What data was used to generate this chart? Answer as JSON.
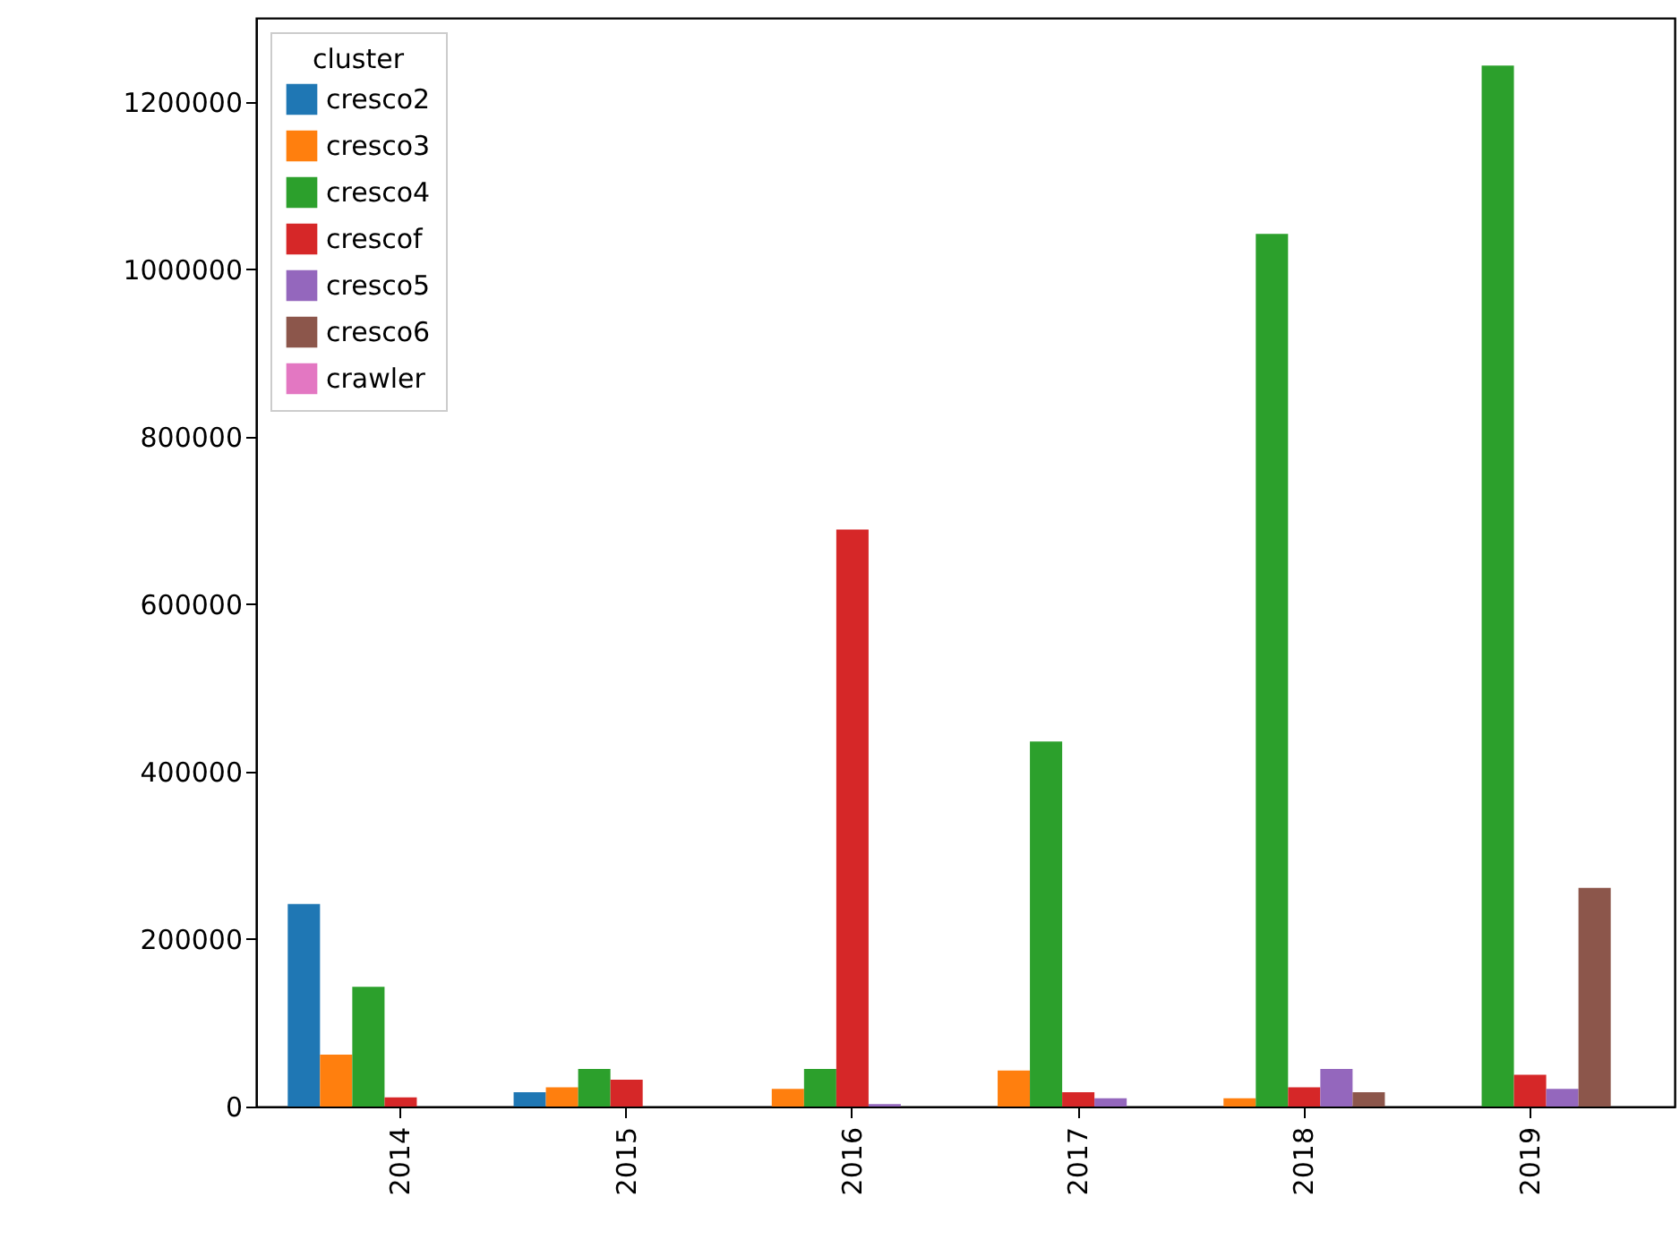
{
  "chart_data": {
    "type": "bar",
    "legend_title": "cluster",
    "legend": "top left",
    "grid": false,
    "categories": [
      "2014",
      "2015",
      "2016",
      "2017",
      "2018",
      "2019"
    ],
    "ylim": [
      0,
      1300000
    ],
    "yticks": [
      0,
      200000,
      400000,
      600000,
      800000,
      1000000,
      1200000
    ],
    "series": [
      {
        "name": "cresco2",
        "color": "#1f77b4",
        "values": [
          242000,
          17000,
          0,
          0,
          0,
          0
        ]
      },
      {
        "name": "cresco3",
        "color": "#ff7f0e",
        "values": [
          62000,
          23000,
          21000,
          43000,
          10000,
          0
        ]
      },
      {
        "name": "cresco4",
        "color": "#2ca02c",
        "values": [
          143000,
          45000,
          45000,
          436000,
          1042000,
          1243000
        ]
      },
      {
        "name": "crescof",
        "color": "#d62728",
        "values": [
          11000,
          32000,
          689000,
          17000,
          23000,
          38000
        ]
      },
      {
        "name": "cresco5",
        "color": "#9467bd",
        "values": [
          0,
          0,
          3000,
          10000,
          45000,
          21000
        ]
      },
      {
        "name": "cresco6",
        "color": "#8c564b",
        "values": [
          0,
          0,
          0,
          0,
          17000,
          261000
        ]
      },
      {
        "name": "crawler",
        "color": "#e377c2",
        "values": [
          0,
          0,
          0,
          0,
          0,
          0
        ]
      }
    ]
  }
}
